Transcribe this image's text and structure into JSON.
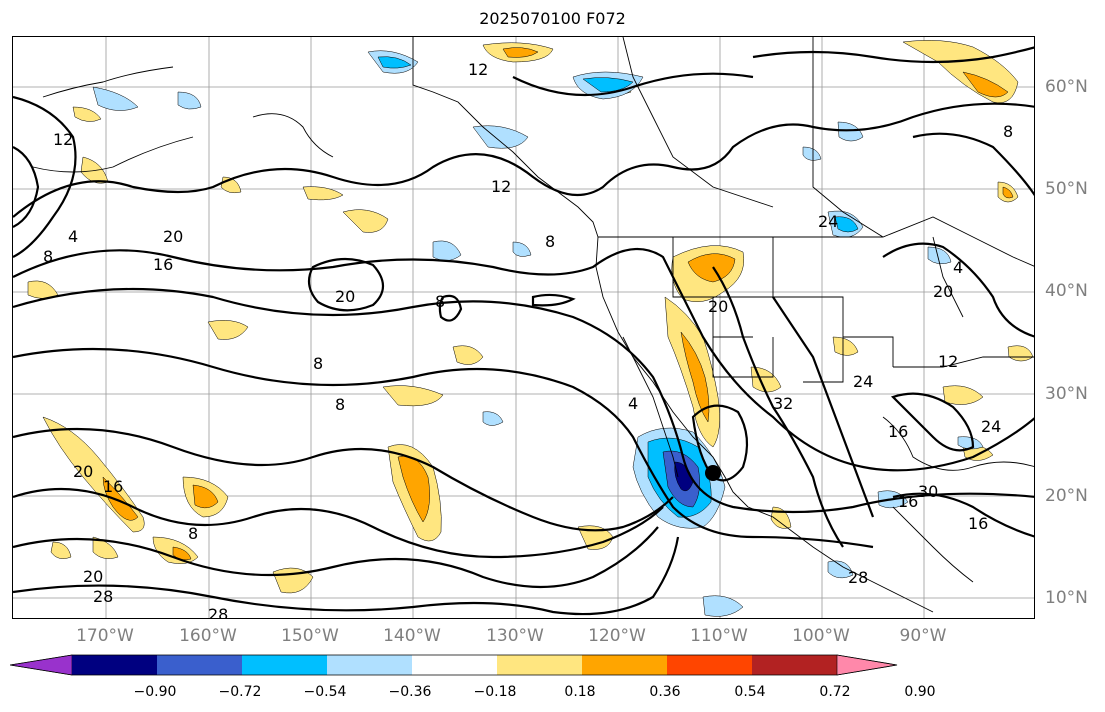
{
  "title": "2025070100 F072",
  "lat_labels": [
    "60°N",
    "50°N",
    "40°N",
    "30°N",
    "20°N",
    "10°N"
  ],
  "lon_labels": [
    "170°W",
    "160°W",
    "150°W",
    "140°W",
    "130°W",
    "120°W",
    "110°W",
    "100°W",
    "90°W"
  ],
  "colorbar": {
    "colors": [
      "#9932cc",
      "#000080",
      "#3a5fcd",
      "#00bfff",
      "#b0e0ff",
      "#ffffff",
      "#ffe680",
      "#ffa500",
      "#ff4500",
      "#b22222",
      "#ff88aa"
    ],
    "labels": [
      "−0.90",
      "−0.72",
      "−0.54",
      "−0.36",
      "−0.18",
      "0.18",
      "0.36",
      "0.54",
      "0.72",
      "0.90"
    ]
  },
  "contour_labels": [
    "12",
    "12",
    "12",
    "8",
    "8",
    "8",
    "8",
    "8",
    "8",
    "4",
    "4",
    "20",
    "20",
    "20",
    "20",
    "16",
    "16",
    "16",
    "24",
    "24",
    "24",
    "32",
    "12",
    "16",
    "20",
    "28",
    "28",
    "28",
    "20",
    "16",
    "30",
    "8",
    "4"
  ],
  "map_features": {
    "storm_marker": "black-dot",
    "land_color": "#000000",
    "gridline_color": "#999999"
  }
}
